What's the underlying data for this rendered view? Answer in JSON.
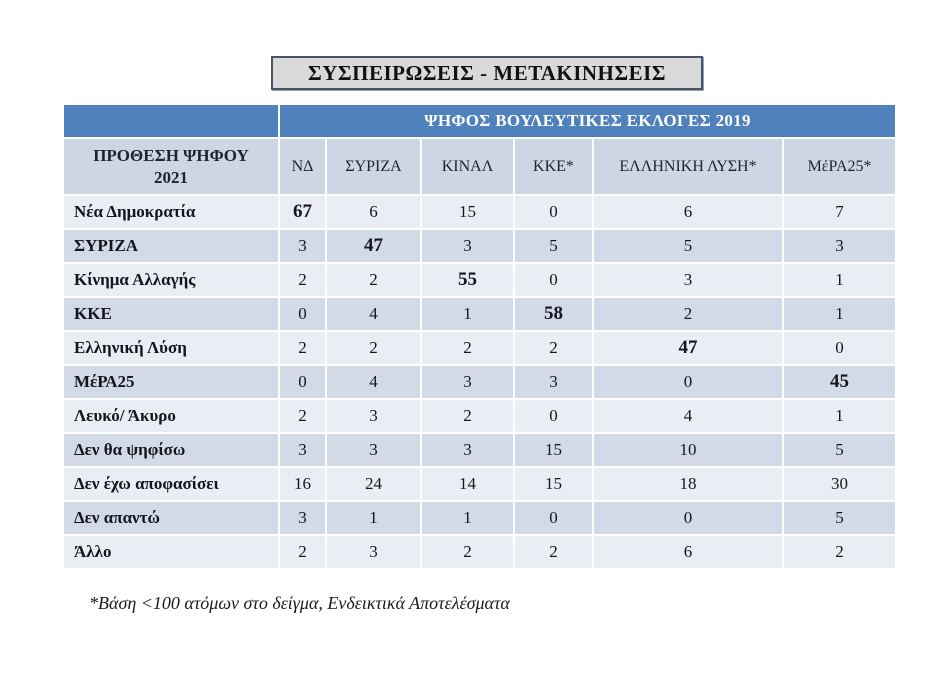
{
  "title": "ΣΥΣΠΕΙΡΩΣΕΙΣ - ΜΕΤΑΚΙΝΗΣΕΙΣ",
  "table": {
    "banner": "ΨΗΦΟΣ ΒΟΥΛΕΥΤΙΚΕΣ ΕΚΛΟΓΕΣ 2019",
    "row_header": "ΠΡΟΘΕΣΗ ΨΗΦΟΥ 2021",
    "columns": [
      "ΝΔ",
      "ΣΥΡΙΖΑ",
      "ΚΙΝΑΛ",
      "ΚΚΕ*",
      "ΕΛΛΗΝΙΚΗ ΛΥΣΗ*",
      "ΜέΡΑ25*"
    ],
    "rows": [
      {
        "label": "Νέα Δημοκρατία",
        "values": [
          67,
          6,
          15,
          0,
          6,
          7
        ],
        "bold_index": 0
      },
      {
        "label": "ΣΥΡΙΖΑ",
        "values": [
          3,
          47,
          3,
          5,
          5,
          3
        ],
        "bold_index": 1
      },
      {
        "label": "Κίνημα Αλλαγής",
        "values": [
          2,
          2,
          55,
          0,
          3,
          1
        ],
        "bold_index": 2
      },
      {
        "label": "ΚΚΕ",
        "values": [
          0,
          4,
          1,
          58,
          2,
          1
        ],
        "bold_index": 3
      },
      {
        "label": "Ελληνική Λύση",
        "values": [
          2,
          2,
          2,
          2,
          47,
          0
        ],
        "bold_index": 4
      },
      {
        "label": "ΜέΡΑ25",
        "values": [
          0,
          4,
          3,
          3,
          0,
          45
        ],
        "bold_index": 5
      },
      {
        "label": "Λευκό/ Άκυρο",
        "values": [
          2,
          3,
          2,
          0,
          4,
          1
        ],
        "bold_index": -1
      },
      {
        "label": "Δεν θα ψηφίσω",
        "values": [
          3,
          3,
          3,
          15,
          10,
          5
        ],
        "bold_index": -1
      },
      {
        "label": "Δεν έχω αποφασίσει",
        "values": [
          16,
          24,
          14,
          15,
          18,
          30
        ],
        "bold_index": -1
      },
      {
        "label": "Δεν απαντώ",
        "values": [
          3,
          1,
          1,
          0,
          0,
          5
        ],
        "bold_index": -1
      },
      {
        "label": "Άλλο",
        "values": [
          2,
          3,
          2,
          2,
          6,
          2
        ],
        "bold_index": -1
      }
    ]
  },
  "footnote": "*Βάση <100 ατόμων στο δείγμα, Ενδεικτικά Αποτελέσματα",
  "colors": {
    "header_blue": "#4f81bd",
    "band_dark": "#d2dae8",
    "band_light": "#eaedf4",
    "colhead_bg": "#ccd6e5",
    "title_box_bg": "#d9d9d9",
    "title_box_border": "#44546a"
  }
}
